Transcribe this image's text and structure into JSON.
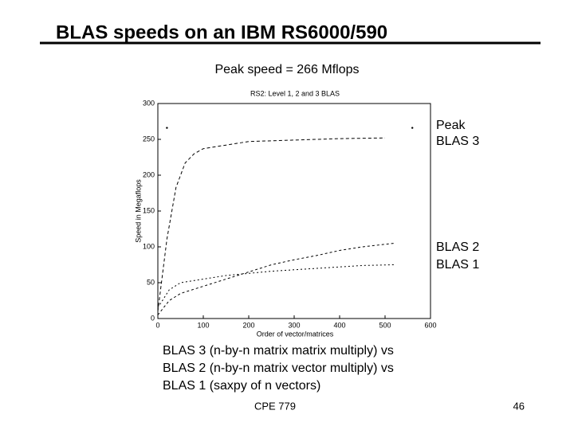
{
  "slide": {
    "title": "BLAS speeds on an IBM RS6000/590",
    "subtitle": "Peak speed = 266 Mflops",
    "notes": [
      "BLAS 3 (n-by-n matrix matrix multiply) vs",
      "BLAS 2 (n-by-n matrix vector multiply) vs",
      "BLAS 1 (saxpy of  n vectors)"
    ],
    "footer": "CPE 779",
    "page": "46"
  },
  "chart_data": {
    "type": "line",
    "title": "RS2: Level 1, 2 and 3 BLAS",
    "x_label": "Order of vector/matrices",
    "y_label": "Speed in Megaflops",
    "xlim": [
      0,
      600
    ],
    "xticks": [
      0,
      100,
      200,
      300,
      400,
      500,
      600
    ],
    "ylim": [
      0,
      300
    ],
    "yticks": [
      0,
      50,
      100,
      150,
      200,
      250,
      300
    ],
    "peak": {
      "label": "Peak",
      "value": 266,
      "x": [
        20,
        560
      ]
    },
    "series": [
      {
        "name": "BLAS 3",
        "color": "#000000",
        "x": [
          0,
          20,
          40,
          60,
          80,
          100,
          150,
          200,
          300,
          400,
          500
        ],
        "values": [
          10,
          111,
          183,
          217,
          230,
          237,
          242,
          247,
          249,
          251,
          252
        ]
      },
      {
        "name": "BLAS 2",
        "color": "#000000",
        "x": [
          0,
          25,
          50,
          100,
          150,
          200,
          250,
          300,
          350,
          400,
          450,
          520
        ],
        "values": [
          5,
          25,
          35,
          45,
          55,
          65,
          75,
          82,
          88,
          95,
          100,
          105
        ]
      },
      {
        "name": "BLAS 1",
        "color": "#000000",
        "x": [
          0,
          25,
          50,
          100,
          150,
          200,
          250,
          300,
          350,
          400,
          450,
          520
        ],
        "values": [
          15,
          40,
          50,
          55,
          60,
          63,
          66,
          68,
          70,
          72,
          74,
          75
        ]
      }
    ]
  }
}
